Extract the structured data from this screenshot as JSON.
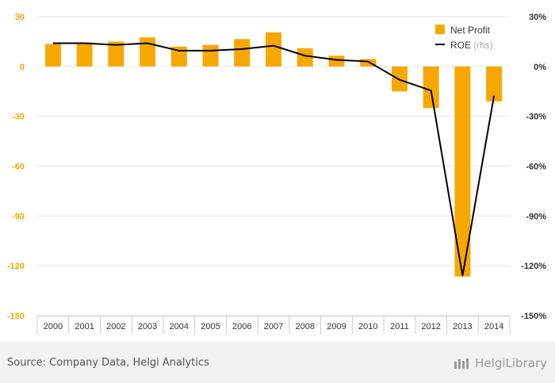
{
  "chart_data": {
    "type": "bar+line",
    "categories": [
      "2000",
      "2001",
      "2002",
      "2003",
      "2004",
      "2005",
      "2006",
      "2007",
      "2008",
      "2009",
      "2010",
      "2011",
      "2012",
      "2013",
      "2014"
    ],
    "series": [
      {
        "name": "Net Profit",
        "type": "bar",
        "axis": "left",
        "color": "#f7a800",
        "values": [
          13.5,
          14.5,
          15,
          17.5,
          12,
          13,
          16.5,
          20.5,
          11,
          6.5,
          4.5,
          -15,
          -25,
          -126.5,
          -21
        ]
      },
      {
        "name": "ROE",
        "type": "line",
        "axis": "right",
        "color": "#000000",
        "values": [
          14,
          14,
          13,
          14,
          9.5,
          9.5,
          10.5,
          12.5,
          6.5,
          4,
          3,
          -8,
          -14.5,
          -126,
          -17.5
        ]
      }
    ],
    "left_axis": {
      "ticks": [
        "30",
        "0",
        "-30",
        "-60",
        "-90",
        "-120",
        "-150"
      ],
      "ylim": [
        -150,
        30
      ],
      "color": "#f7a800"
    },
    "right_axis": {
      "ticks": [
        "30%",
        "0%",
        "-30%",
        "-60%",
        "-90%",
        "-120%",
        "-150%"
      ],
      "ylim": [
        -150,
        30
      ]
    },
    "legend": {
      "placement": "top-right",
      "items": [
        {
          "label": "Net Profit"
        },
        {
          "label": "ROE",
          "suffix": "(rhs)"
        }
      ]
    },
    "grid": true
  },
  "footer": {
    "source": "Source: Company Data, Helgi Analytics",
    "logo": "HelgiLibrary"
  }
}
